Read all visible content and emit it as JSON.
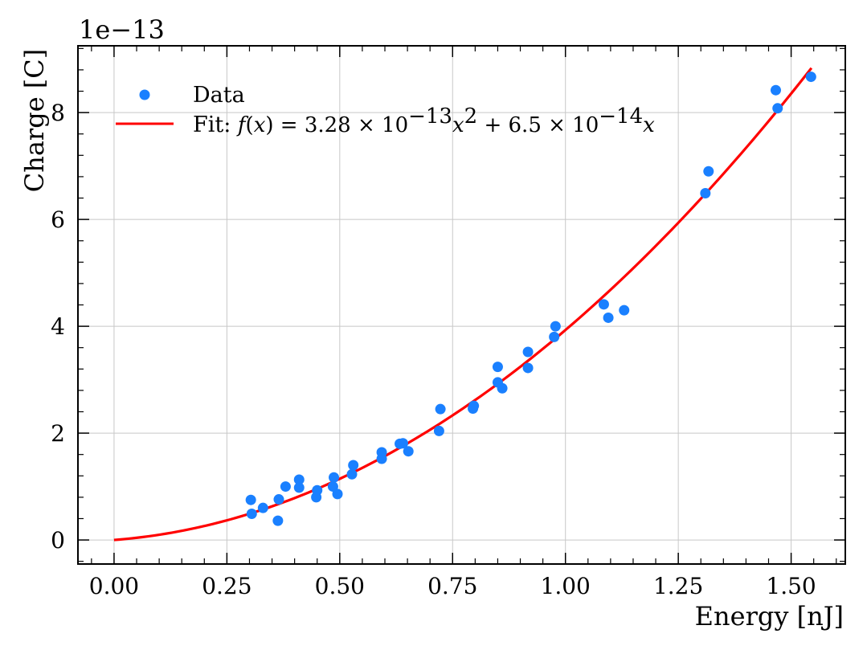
{
  "chart_data": {
    "type": "scatter",
    "xlabel": "Energy [nJ]",
    "ylabel": "Charge [C]",
    "offset_text": "1e−13",
    "xlim": [
      -0.08,
      1.62
    ],
    "ylim": [
      -0.45,
      9.25
    ],
    "x_ticks": [
      0.0,
      0.25,
      0.5,
      0.75,
      1.0,
      1.25,
      1.5
    ],
    "x_tick_labels": [
      "0.00",
      "0.25",
      "0.50",
      "0.75",
      "1.00",
      "1.25",
      "1.50"
    ],
    "y_ticks": [
      0,
      2,
      4,
      6,
      8
    ],
    "y_tick_labels": [
      "0",
      "2",
      "4",
      "6",
      "8"
    ],
    "grid": true,
    "legend_position": "upper-left",
    "series": [
      {
        "name": "Data",
        "kind": "scatter",
        "color": "#1a80ff",
        "points": [
          [
            0.303,
            0.75
          ],
          [
            0.305,
            0.49
          ],
          [
            0.33,
            0.6
          ],
          [
            0.365,
            0.76
          ],
          [
            0.363,
            0.36
          ],
          [
            0.38,
            1.0
          ],
          [
            0.41,
            0.98
          ],
          [
            0.41,
            1.13
          ],
          [
            0.448,
            0.8
          ],
          [
            0.45,
            0.93
          ],
          [
            0.485,
            1.0
          ],
          [
            0.487,
            1.17
          ],
          [
            0.495,
            0.86
          ],
          [
            0.527,
            1.23
          ],
          [
            0.53,
            1.4
          ],
          [
            0.593,
            1.52
          ],
          [
            0.593,
            1.64
          ],
          [
            0.633,
            1.8
          ],
          [
            0.64,
            1.81
          ],
          [
            0.652,
            1.66
          ],
          [
            0.72,
            2.04
          ],
          [
            0.723,
            2.45
          ],
          [
            0.795,
            2.46
          ],
          [
            0.797,
            2.51
          ],
          [
            0.85,
            3.24
          ],
          [
            0.85,
            2.95
          ],
          [
            0.86,
            2.84
          ],
          [
            0.917,
            3.52
          ],
          [
            0.917,
            3.22
          ],
          [
            0.975,
            3.8
          ],
          [
            0.978,
            4.0
          ],
          [
            1.085,
            4.41
          ],
          [
            1.095,
            4.16
          ],
          [
            1.13,
            4.3
          ],
          [
            1.31,
            6.49
          ],
          [
            1.317,
            6.9
          ],
          [
            1.466,
            8.42
          ],
          [
            1.47,
            8.08
          ],
          [
            1.544,
            8.67
          ]
        ]
      },
      {
        "name": "Fit",
        "kind": "line",
        "color": "#ff0000",
        "function": "f(x) = 3.28e-13 x^2 + 6.5e-14 x",
        "a": 3.28,
        "b": 0.65,
        "x_range": [
          0.0,
          1.545
        ]
      }
    ],
    "legend": [
      {
        "label": "Data",
        "marker": "dot"
      },
      {
        "label_prefix": "Fit: ",
        "marker": "line"
      }
    ]
  }
}
